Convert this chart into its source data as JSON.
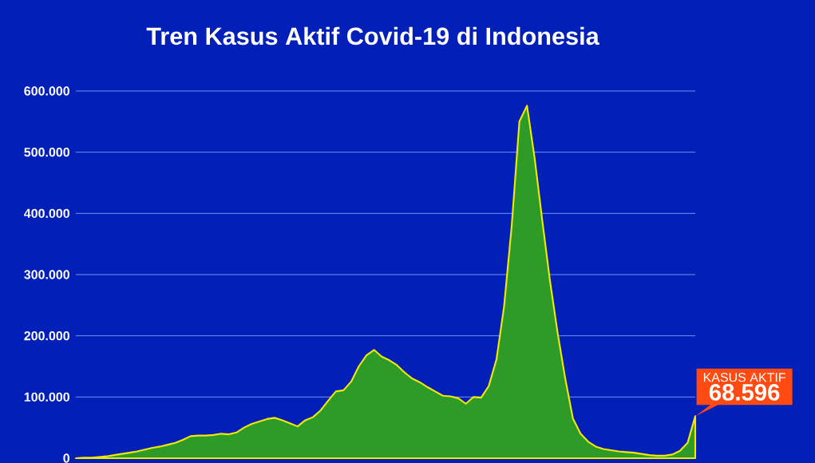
{
  "chart_data": {
    "type": "area",
    "title": "Tren Kasus Aktif Covid-19 di Indonesia",
    "annotations": [
      "KASUS AKTIF"
    ],
    "categories": [
      null,
      null,
      null,
      null,
      null,
      null,
      null,
      null,
      null,
      null,
      null,
      null,
      null,
      null,
      null,
      null,
      null,
      null,
      null,
      null,
      null,
      null,
      null,
      null,
      null,
      null,
      null,
      null,
      null,
      null,
      null,
      null,
      null,
      null,
      null,
      null,
      null,
      null,
      null,
      null,
      null,
      null,
      null,
      null,
      null,
      null,
      null,
      null,
      null,
      null,
      null,
      null,
      null,
      null,
      null,
      null,
      null,
      null,
      null,
      null,
      null,
      null,
      null,
      null,
      null,
      null,
      null,
      null,
      null,
      null,
      null,
      null,
      null,
      null,
      null,
      null,
      null,
      null,
      null,
      null,
      null,
      null
    ],
    "values": [
      0,
      1000,
      1000,
      2000,
      3000,
      5000,
      7000,
      9000,
      11000,
      14000,
      17000,
      19000,
      22000,
      25000,
      30000,
      36000,
      37000,
      37000,
      38000,
      40000,
      39000,
      42000,
      50000,
      56000,
      60000,
      64000,
      66000,
      62000,
      57000,
      52000,
      62000,
      67000,
      78000,
      94000,
      109000,
      111000,
      125000,
      150000,
      168000,
      177000,
      166000,
      160000,
      152000,
      140000,
      130000,
      124000,
      116000,
      109000,
      102000,
      101000,
      98000,
      89000,
      100000,
      99000,
      118000,
      161000,
      248000,
      380000,
      550000,
      576000,
      490000,
      388000,
      290000,
      205000,
      130000,
      65000,
      40000,
      27000,
      19000,
      15000,
      13000,
      11000,
      10000,
      9000,
      7000,
      5000,
      4000,
      4000,
      6000,
      12000,
      25000,
      68596
    ],
    "value_labels": [
      null,
      null,
      null,
      null,
      null,
      null,
      null,
      null,
      null,
      null,
      null,
      null,
      null,
      null,
      null,
      null,
      null,
      null,
      null,
      null,
      null,
      null,
      null,
      null,
      null,
      null,
      null,
      null,
      null,
      null,
      null,
      null,
      null,
      null,
      null,
      null,
      null,
      null,
      null,
      null,
      null,
      null,
      null,
      null,
      null,
      null,
      null,
      null,
      null,
      null,
      null,
      null,
      null,
      null,
      null,
      null,
      null,
      null,
      null,
      null,
      null,
      null,
      null,
      null,
      null,
      null,
      null,
      null,
      null,
      null,
      null,
      null,
      null,
      null,
      null,
      null,
      null,
      null,
      null,
      null,
      null,
      "68.596"
    ],
    "color": "#2e9a28",
    "ylim": [
      0,
      600000
    ],
    "yticks": [
      0,
      {
        "value": 100000,
        "label": "100.000"
      },
      {
        "value": 200000,
        "label": "200.000"
      },
      {
        "value": 300000,
        "label": "300.000"
      },
      {
        "value": 400000,
        "label": "400.000"
      },
      {
        "value": 500000,
        "label": "500.000"
      },
      {
        "value": 600000,
        "label": "600.000"
      }
    ],
    "grid": "y",
    "tick_labels": "y"
  }
}
